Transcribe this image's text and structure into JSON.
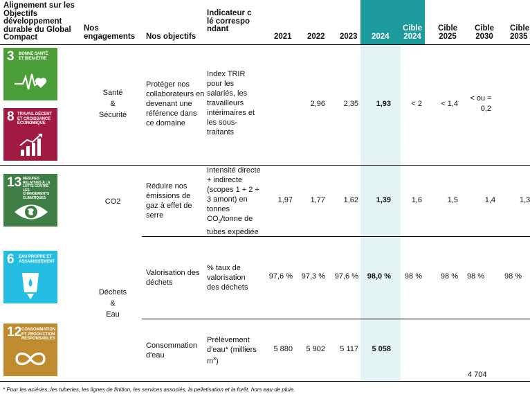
{
  "header": {
    "alignment": "Alignement sur les Objectifs développement durable du Global Compact",
    "engagements": "Nos engagements",
    "objectifs": "Nos objectifs",
    "indicateur": "Indicateur clé correspondant",
    "y2021": "2021",
    "y2022": "2022",
    "y2023": "2023",
    "y2024": "2024",
    "cible2024_l1": "Cible",
    "cible2024_l2": "2024",
    "cible2025_l1": "Cible",
    "cible2025_l2": "2025",
    "cible2030_l1": "Cible",
    "cible2030_l2": "2030",
    "cible2035_l1": "Cible",
    "cible2035_l2": "2035"
  },
  "colors": {
    "highlight_col": "#e4f3f3",
    "highlight_header": "#1d9a9c",
    "sdg3": "#4c9f38",
    "sdg8": "#a21942",
    "sdg13": "#3f7e44",
    "sdg6": "#26bde2",
    "sdg12": "#bf8b2e"
  },
  "sdgs": [
    {
      "number": "3",
      "label": "Bonne santé et bien-être",
      "icon": "heartbeat-icon"
    },
    {
      "number": "8",
      "label": "Travail décent et croissance économique",
      "icon": "growth-chart-icon"
    },
    {
      "number": "13",
      "label": "Mesures relatives à la lutte contre les changements climatiques",
      "icon": "eye-globe-icon"
    },
    {
      "number": "6",
      "label": "Eau propre et assainissement",
      "icon": "water-glass-icon"
    },
    {
      "number": "12",
      "label": "Consommation et production responsables",
      "icon": "infinity-icon"
    }
  ],
  "rows": {
    "sante": {
      "engagement_l1": "Santé",
      "engagement_l2": "&",
      "engagement_l3": "Sécurité",
      "objectif": "Protéger nos collaborateurs en devenant une référence dans ce domaine",
      "indicateur": "Index TRIR pour les salariés, les travailleurs intérimaires et les sous-traitants",
      "v2021": "",
      "v2022": "2,96",
      "v2023": "2,35",
      "v2024": "1,93",
      "cible2024": "< 2",
      "cible2025": "< 1,4",
      "cible2030_l1": "< ou =",
      "cible2030_l2": "0,2",
      "cible2035": ""
    },
    "co2": {
      "engagement": "CO2",
      "objectif": "Réduire nos émissions de gaz à effet de serre",
      "indicateur_l1": "Intensité directe + indirecte (scopes 1 + 2 + 3 amont) en tonnes CO",
      "indicateur_sub": "2",
      "indicateur_l2": "/tonne de tubes expédiée",
      "v2021": "1,97",
      "v2022": "1,77",
      "v2023": "1,62",
      "v2024": "1,39",
      "cible2024": "1,6",
      "cible2025": "1,5",
      "cible2030": "1,4",
      "cible2035": "1,3"
    },
    "dechets": {
      "engagement_l1": "Déchets",
      "engagement_l2": "&",
      "engagement_l3": "Eau",
      "objectif": "Valorisation des déchets",
      "indicateur": "% taux de valorisation des déchets",
      "v2021": "97,6 %",
      "v2022": "97,3 %",
      "v2023": "97,6 %",
      "v2024": "98,0 %",
      "cible2024": "98 %",
      "cible2025": "98 %",
      "cible2030": "98 %",
      "cible2035": "98 %"
    },
    "eau": {
      "objectif": "Consommation d'eau",
      "indicateur_l1": "Prélèvement d'eau* (milliers m",
      "indicateur_sup": "3",
      "indicateur_l2": ")",
      "v2021": "5 880",
      "v2022": "5 902",
      "v2023": "5 117",
      "v2024": "5 058",
      "cible2030": "4 704"
    }
  },
  "footnote": "* Pour les aciéries, les tuberies, les lignes de finition, les services associés, la pelletisation et la forêt, hors eau de pluie."
}
